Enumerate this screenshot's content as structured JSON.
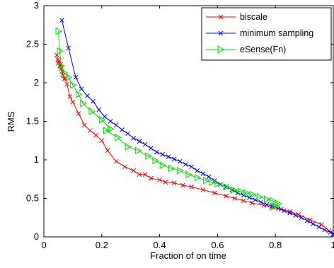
{
  "chart_data": {
    "type": "line",
    "title": "",
    "xlabel": "Fraction of on time",
    "ylabel": "RMS",
    "xlim": [
      0,
      1
    ],
    "ylim": [
      0,
      3
    ],
    "xticks": [
      0,
      0.2,
      0.4,
      0.6,
      0.8,
      1
    ],
    "xtick_labels": [
      "0",
      "0.2",
      "0.4",
      "0.6",
      "0.8",
      "1"
    ],
    "yticks": [
      0,
      0.5,
      1,
      1.5,
      2,
      2.5,
      3
    ],
    "ytick_labels": [
      "0",
      "0.5",
      "1",
      "1.5",
      "2",
      "2.5",
      "3"
    ],
    "grid": false,
    "legend_position": "top-right",
    "series": [
      {
        "name": "biscale",
        "color": "#ff0000",
        "marker": "x",
        "points": [
          [
            0.045,
            2.36
          ],
          [
            0.048,
            2.3
          ],
          [
            0.05,
            2.25
          ],
          [
            0.052,
            2.28
          ],
          [
            0.055,
            2.22
          ],
          [
            0.058,
            2.24
          ],
          [
            0.06,
            2.18
          ],
          [
            0.063,
            2.15
          ],
          [
            0.066,
            2.1
          ],
          [
            0.07,
            2.05
          ],
          [
            0.075,
            2.05
          ],
          [
            0.08,
            1.98
          ],
          [
            0.09,
            1.82
          ],
          [
            0.1,
            1.75
          ],
          [
            0.12,
            1.6
          ],
          [
            0.14,
            1.45
          ],
          [
            0.16,
            1.38
          ],
          [
            0.18,
            1.32
          ],
          [
            0.2,
            1.25
          ],
          [
            0.22,
            1.12
          ],
          [
            0.25,
            0.98
          ],
          [
            0.28,
            0.91
          ],
          [
            0.31,
            0.86
          ],
          [
            0.33,
            0.81
          ],
          [
            0.35,
            0.81
          ],
          [
            0.37,
            0.76
          ],
          [
            0.4,
            0.74
          ],
          [
            0.42,
            0.71
          ],
          [
            0.45,
            0.7
          ],
          [
            0.48,
            0.67
          ],
          [
            0.51,
            0.65
          ],
          [
            0.55,
            0.61
          ],
          [
            0.59,
            0.57
          ],
          [
            0.63,
            0.53
          ],
          [
            0.66,
            0.5
          ],
          [
            0.69,
            0.47
          ],
          [
            0.72,
            0.44
          ],
          [
            0.76,
            0.41
          ],
          [
            0.79,
            0.38
          ],
          [
            0.82,
            0.36
          ],
          [
            0.85,
            0.33
          ],
          [
            0.88,
            0.29
          ],
          [
            0.92,
            0.22
          ],
          [
            0.96,
            0.16
          ],
          [
            0.985,
            0.08
          ],
          [
            1.0,
            0.03
          ]
        ]
      },
      {
        "name": "minimum sampling",
        "color": "#0000ff",
        "marker": "x",
        "points": [
          [
            0.062,
            2.81
          ],
          [
            0.085,
            2.45
          ],
          [
            0.11,
            2.07
          ],
          [
            0.13,
            1.92
          ],
          [
            0.15,
            1.83
          ],
          [
            0.17,
            1.76
          ],
          [
            0.19,
            1.65
          ],
          [
            0.21,
            1.56
          ],
          [
            0.23,
            1.5
          ],
          [
            0.25,
            1.45
          ],
          [
            0.27,
            1.39
          ],
          [
            0.29,
            1.34
          ],
          [
            0.31,
            1.28
          ],
          [
            0.33,
            1.24
          ],
          [
            0.35,
            1.2
          ],
          [
            0.37,
            1.15
          ],
          [
            0.39,
            1.1
          ],
          [
            0.41,
            1.07
          ],
          [
            0.43,
            1.04
          ],
          [
            0.45,
            1.01
          ],
          [
            0.47,
            0.98
          ],
          [
            0.49,
            0.94
          ],
          [
            0.51,
            0.91
          ],
          [
            0.53,
            0.86
          ],
          [
            0.55,
            0.82
          ],
          [
            0.57,
            0.78
          ],
          [
            0.59,
            0.73
          ],
          [
            0.61,
            0.68
          ],
          [
            0.63,
            0.65
          ],
          [
            0.65,
            0.61
          ],
          [
            0.67,
            0.57
          ],
          [
            0.69,
            0.54
          ],
          [
            0.71,
            0.51
          ],
          [
            0.73,
            0.48
          ],
          [
            0.75,
            0.45
          ],
          [
            0.77,
            0.42
          ],
          [
            0.79,
            0.4
          ],
          [
            0.81,
            0.37
          ],
          [
            0.83,
            0.34
          ],
          [
            0.85,
            0.31
          ],
          [
            0.87,
            0.28
          ],
          [
            0.89,
            0.25
          ],
          [
            0.91,
            0.21
          ],
          [
            0.93,
            0.17
          ],
          [
            0.95,
            0.13
          ],
          [
            0.97,
            0.09
          ],
          [
            0.99,
            0.06
          ],
          [
            1.0,
            0.04
          ]
        ]
      },
      {
        "name": "eSense(Fn)",
        "color": "#00dd00",
        "marker": ">",
        "points": [
          [
            0.05,
            2.67
          ],
          [
            0.055,
            2.41
          ],
          [
            0.06,
            2.22
          ],
          [
            0.07,
            2.13
          ],
          [
            0.085,
            2.07
          ],
          [
            0.1,
            1.97
          ],
          [
            0.12,
            1.85
          ],
          [
            0.135,
            1.73
          ],
          [
            0.165,
            1.63
          ],
          [
            0.2,
            1.52
          ],
          [
            0.23,
            1.4
          ],
          [
            0.215,
            1.38
          ],
          [
            0.255,
            1.29
          ],
          [
            0.29,
            1.17
          ],
          [
            0.325,
            1.12
          ],
          [
            0.36,
            1.05
          ],
          [
            0.385,
            0.99
          ],
          [
            0.41,
            0.93
          ],
          [
            0.44,
            0.89
          ],
          [
            0.47,
            0.86
          ],
          [
            0.5,
            0.81
          ],
          [
            0.53,
            0.77
          ],
          [
            0.56,
            0.73
          ],
          [
            0.58,
            0.71
          ],
          [
            0.6,
            0.69
          ],
          [
            0.63,
            0.65
          ],
          [
            0.655,
            0.61
          ],
          [
            0.68,
            0.59
          ],
          [
            0.7,
            0.57
          ],
          [
            0.72,
            0.55
          ],
          [
            0.745,
            0.52
          ],
          [
            0.77,
            0.49
          ],
          [
            0.79,
            0.47
          ],
          [
            0.81,
            0.43
          ],
          [
            0.8,
            0.4
          ],
          [
            0.79,
            0.39
          ]
        ]
      }
    ]
  },
  "legend": {
    "items": [
      {
        "label": "biscale"
      },
      {
        "label": "minimum sampling"
      },
      {
        "label": "eSense(Fn)"
      }
    ]
  }
}
